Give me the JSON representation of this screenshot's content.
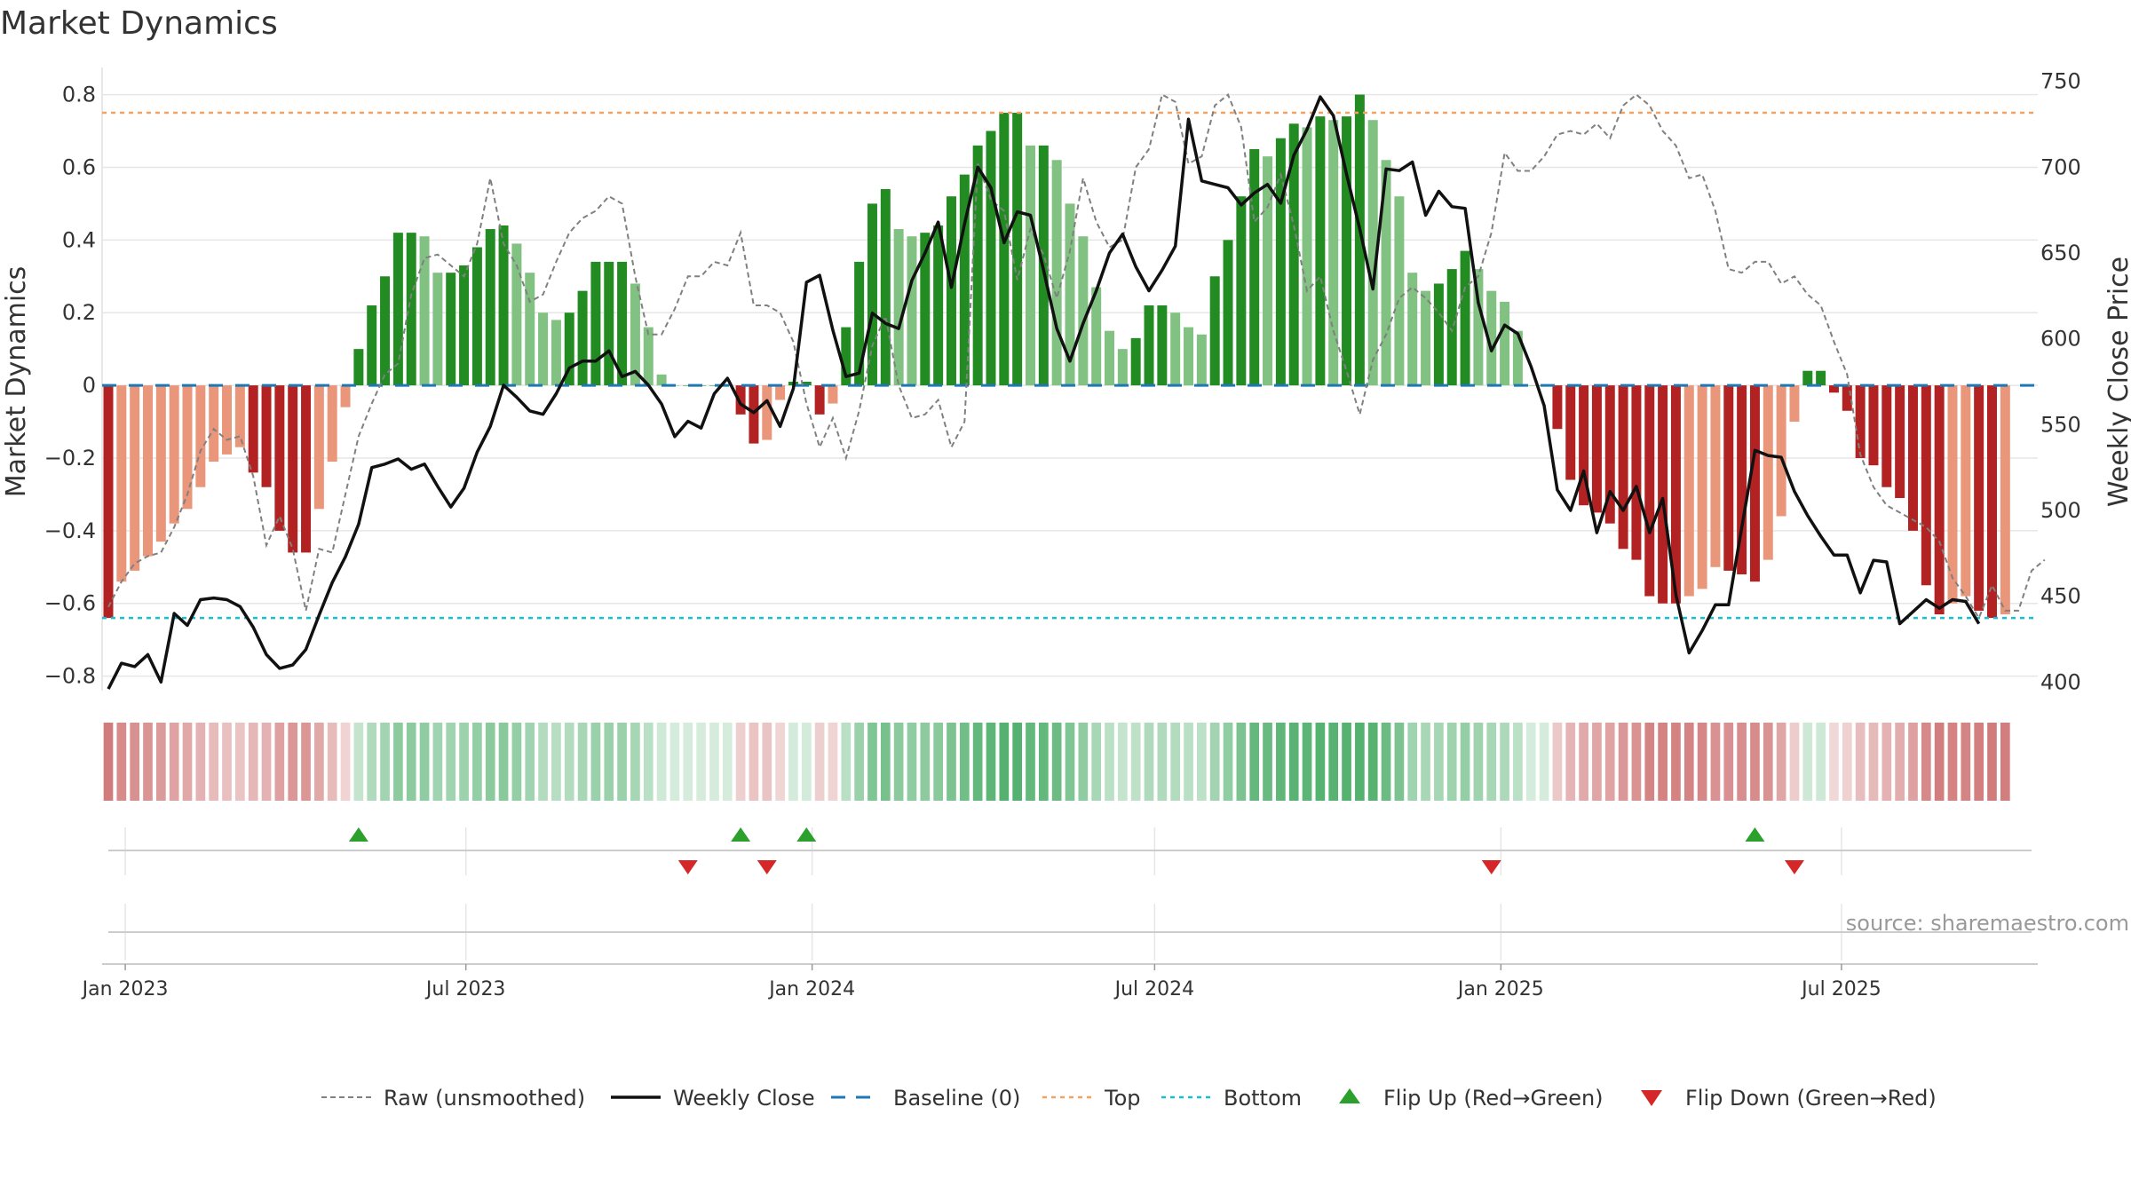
{
  "chart_data": {
    "type": "bar",
    "title": "Market Dynamics",
    "source": "source: sharemaestro.com",
    "ylabel": "Market Dynamics",
    "y2label": "Weekly Close Price",
    "ylim": [
      -0.84,
      0.86
    ],
    "y2lim": [
      395,
      755
    ],
    "yticks": [
      -0.8,
      -0.6,
      -0.4,
      -0.2,
      0,
      0.2,
      0.4,
      0.6,
      0.8
    ],
    "ytick_labels": [
      "−0.8",
      "−0.6",
      "−0.4",
      "−0.2",
      "0",
      "0.2",
      "0.4",
      "0.6",
      "0.8"
    ],
    "y2ticks": [
      400,
      450,
      500,
      550,
      600,
      650,
      700,
      750
    ],
    "y2tick_labels": [
      "400",
      "450",
      "500",
      "550",
      "600",
      "650",
      "700",
      "750"
    ],
    "x_dates": {
      "start": "2022-12-23",
      "step_days": 7,
      "count": 147
    },
    "xticks": [
      {
        "date": "2023-01-01",
        "label": "Jan 2023"
      },
      {
        "date": "2023-07-01",
        "label": "Jul 2023"
      },
      {
        "date": "2024-01-01",
        "label": "Jan 2024"
      },
      {
        "date": "2024-07-01",
        "label": "Jul 2024"
      },
      {
        "date": "2025-01-01",
        "label": "Jan 2025"
      },
      {
        "date": "2025-07-01",
        "label": "Jul 2025"
      }
    ],
    "top_level": 0.75,
    "bottom_level": -0.64,
    "grid": true,
    "legend_position": "bottom",
    "series": [
      {
        "name": "Raw (unsmoothed)",
        "values": [
          -0.61,
          -0.54,
          -0.49,
          -0.47,
          -0.46,
          -0.39,
          -0.3,
          -0.18,
          -0.12,
          -0.15,
          -0.14,
          -0.25,
          -0.44,
          -0.36,
          -0.45,
          -0.62,
          -0.45,
          -0.46,
          -0.3,
          -0.14,
          -0.05,
          0.03,
          0.06,
          0.25,
          0.35,
          0.36,
          0.33,
          0.3,
          0.39,
          0.57,
          0.39,
          0.33,
          0.23,
          0.25,
          0.34,
          0.42,
          0.46,
          0.48,
          0.52,
          0.5,
          0.3,
          0.14,
          0.14,
          0.21,
          0.3,
          0.3,
          0.34,
          0.33,
          0.42,
          0.22,
          0.22,
          0.2,
          0.12,
          -0.05,
          -0.17,
          -0.09,
          -0.2,
          -0.07,
          0.11,
          0.19,
          0.0,
          -0.09,
          -0.08,
          -0.04,
          -0.17,
          -0.1,
          0.61,
          0.51,
          0.48,
          0.29,
          0.43,
          0.36,
          0.24,
          0.37,
          0.57,
          0.45,
          0.38,
          0.4,
          0.6,
          0.65,
          0.8,
          0.78,
          0.61,
          0.63,
          0.77,
          0.8,
          0.71,
          0.45,
          0.49,
          0.58,
          0.44,
          0.26,
          0.3,
          0.15,
          0.04,
          -0.08,
          0.07,
          0.14,
          0.24,
          0.27,
          0.24,
          0.2,
          0.15,
          0.27,
          0.3,
          0.42,
          0.64,
          0.59,
          0.59,
          0.63,
          0.69,
          0.7,
          0.69,
          0.72,
          0.68,
          0.77,
          0.8,
          0.77,
          0.7,
          0.66,
          0.57,
          0.58,
          0.48,
          0.32,
          0.31,
          0.34,
          0.34,
          0.28,
          0.3,
          0.25,
          0.22,
          0.12,
          0.03,
          -0.19,
          -0.28,
          -0.33,
          -0.35,
          -0.37,
          -0.39,
          -0.43,
          -0.53,
          -0.58,
          -0.64,
          -0.55,
          -0.62,
          -0.62,
          -0.51,
          -0.48
        ],
        "color": "#808080"
      },
      {
        "name": "Weekly Close",
        "values": [
          396,
          411,
          409,
          416,
          400,
          440,
          433,
          448,
          449,
          448,
          444,
          432,
          416,
          408,
          410,
          419,
          439,
          458,
          473,
          492,
          525,
          527,
          530,
          524,
          527,
          514,
          502,
          513,
          534,
          549,
          573,
          566,
          558,
          556,
          568,
          583,
          587,
          587,
          593,
          578,
          581,
          573,
          562,
          543,
          552,
          548,
          568,
          577,
          562,
          557,
          564,
          549,
          571,
          633,
          637,
          605,
          578,
          580,
          615,
          609,
          606,
          634,
          650,
          668,
          630,
          667,
          700,
          688,
          656,
          674,
          672,
          640,
          606,
          587,
          609,
          628,
          650,
          661,
          642,
          628,
          640,
          654,
          728,
          692,
          690,
          688,
          678,
          685,
          690,
          679,
          707,
          722,
          741,
          730,
          696,
          664,
          629,
          699,
          698,
          703,
          672,
          686,
          677,
          676,
          621,
          593,
          608,
          603,
          584,
          561,
          512,
          500,
          523,
          487,
          511,
          500,
          514,
          487,
          507,
          451,
          417,
          430,
          445,
          445,
          490,
          535,
          532,
          531,
          511,
          497,
          485,
          474,
          474,
          452,
          471,
          470,
          434,
          441,
          448,
          443,
          448,
          447,
          434
        ],
        "color": "#111111"
      },
      {
        "name": "Baseline (0)",
        "values": [
          0
        ],
        "color": "#1f77b4"
      },
      {
        "name": "Top",
        "values": [
          0.75
        ],
        "color": "#f4a261"
      },
      {
        "name": "Bottom",
        "values": [
          -0.64
        ],
        "color": "#17becf"
      },
      {
        "name": "Flip Up (Red→Green)",
        "dates": [
          "2023-05-05",
          "2023-11-24",
          "2023-12-29",
          "2025-05-16"
        ],
        "color": "#2ca02c"
      },
      {
        "name": "Flip Down (Green→Red)",
        "dates": [
          "2023-10-27",
          "2023-12-08",
          "2024-12-27",
          "2025-06-06"
        ],
        "color": "#d62728"
      }
    ],
    "bars": [
      -0.64,
      -0.54,
      -0.51,
      -0.47,
      -0.43,
      -0.38,
      -0.34,
      -0.28,
      -0.21,
      -0.19,
      -0.17,
      -0.24,
      -0.28,
      -0.4,
      -0.46,
      -0.46,
      -0.34,
      -0.21,
      -0.06,
      0.1,
      0.22,
      0.3,
      0.42,
      0.42,
      0.41,
      0.31,
      0.31,
      0.33,
      0.38,
      0.43,
      0.44,
      0.39,
      0.31,
      0.2,
      0.18,
      0.2,
      0.26,
      0.34,
      0.34,
      0.34,
      0.28,
      0.16,
      0.03,
      0.0,
      0.0,
      0.0,
      0.0,
      0.0,
      -0.08,
      -0.16,
      -0.15,
      -0.04,
      0.01,
      0.01,
      -0.08,
      -0.05,
      0.16,
      0.34,
      0.5,
      0.54,
      0.43,
      0.41,
      0.42,
      0.44,
      0.52,
      0.58,
      0.66,
      0.7,
      0.75,
      0.75,
      0.66,
      0.66,
      0.62,
      0.5,
      0.41,
      0.27,
      0.15,
      0.1,
      0.13,
      0.22,
      0.22,
      0.2,
      0.16,
      0.14,
      0.3,
      0.4,
      0.52,
      0.65,
      0.63,
      0.68,
      0.72,
      0.71,
      0.74,
      0.73,
      0.74,
      0.8,
      0.73,
      0.62,
      0.52,
      0.31,
      0.26,
      0.28,
      0.32,
      0.37,
      0.32,
      0.26,
      0.23,
      0.15,
      0.0,
      0.0,
      -0.12,
      -0.26,
      -0.33,
      -0.35,
      -0.38,
      -0.45,
      -0.48,
      -0.58,
      -0.6,
      -0.6,
      -0.58,
      -0.56,
      -0.5,
      -0.51,
      -0.52,
      -0.54,
      -0.48,
      -0.36,
      -0.1,
      0.04,
      0.04,
      -0.02,
      -0.07,
      -0.2,
      -0.22,
      -0.28,
      -0.31,
      -0.4,
      -0.55,
      -0.63,
      -0.6,
      -0.58,
      -0.62,
      -0.64,
      -0.63
    ],
    "bar_colors": {
      "bull_strong": "#228b22",
      "bull_weak": "#81c181",
      "bear_strong": "#b22222",
      "bear_weak": "#e9967a"
    },
    "strip_colors": {
      "bull": "#41a85f",
      "bear": "#c65b5b"
    }
  }
}
